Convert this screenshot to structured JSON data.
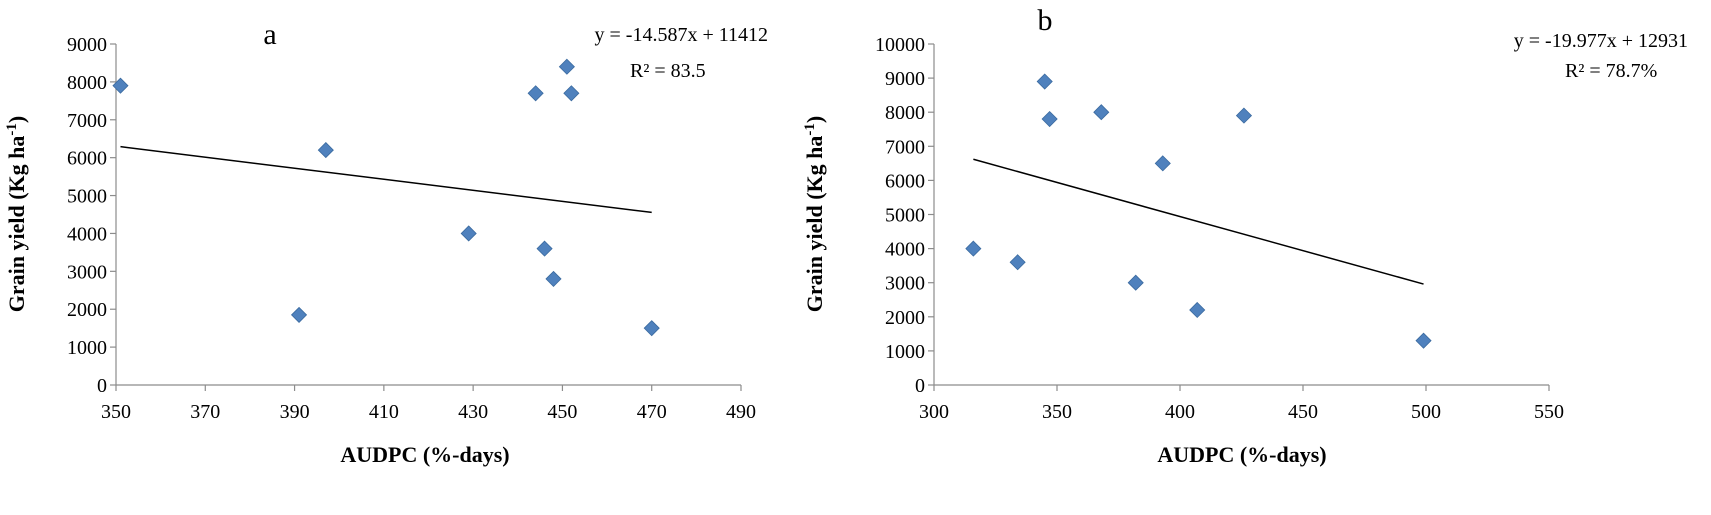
{
  "chart_data": [
    {
      "type": "scatter",
      "panel_label": "a",
      "xlabel": "AUDPC (%-days)",
      "ylabel": "Grain yield (Kg ha",
      "ylabel_sup": "-1",
      "ylabel_end": ")",
      "xlim": [
        350,
        490
      ],
      "ylim": [
        0,
        9000
      ],
      "xticks": [
        350,
        370,
        390,
        410,
        430,
        450,
        470,
        490
      ],
      "yticks": [
        0,
        1000,
        2000,
        3000,
        4000,
        5000,
        6000,
        7000,
        8000,
        9000
      ],
      "grid": false,
      "marker_color": "#4F81BD",
      "points": [
        {
          "x": 351,
          "y": 7900
        },
        {
          "x": 391,
          "y": 1850
        },
        {
          "x": 397,
          "y": 6200
        },
        {
          "x": 429,
          "y": 4000
        },
        {
          "x": 444,
          "y": 7700
        },
        {
          "x": 446,
          "y": 3600
        },
        {
          "x": 448,
          "y": 2800
        },
        {
          "x": 451,
          "y": 8400
        },
        {
          "x": 452,
          "y": 7700
        },
        {
          "x": 470,
          "y": 1500
        }
      ],
      "trendline": {
        "x": [
          351,
          470
        ],
        "y": [
          6290,
          4555
        ]
      },
      "equation": "y = -14.587x + 11412",
      "r2": "R² = 83.5"
    },
    {
      "type": "scatter",
      "panel_label": "b",
      "xlabel": "AUDPC (%-days)",
      "ylabel": "Grain yield (Kg ha",
      "ylabel_sup": "-1",
      "ylabel_end": ")",
      "xlim": [
        300,
        550
      ],
      "ylim": [
        0,
        10000
      ],
      "xticks": [
        300,
        350,
        400,
        450,
        500,
        550
      ],
      "yticks": [
        0,
        1000,
        2000,
        3000,
        4000,
        5000,
        6000,
        7000,
        8000,
        9000,
        10000
      ],
      "grid": false,
      "marker_color": "#4F81BD",
      "points": [
        {
          "x": 316,
          "y": 4000
        },
        {
          "x": 334,
          "y": 3600
        },
        {
          "x": 345,
          "y": 8900
        },
        {
          "x": 347,
          "y": 7800
        },
        {
          "x": 368,
          "y": 8000
        },
        {
          "x": 382,
          "y": 3000
        },
        {
          "x": 393,
          "y": 6500
        },
        {
          "x": 407,
          "y": 2200
        },
        {
          "x": 426,
          "y": 7900
        },
        {
          "x": 499,
          "y": 1300
        }
      ],
      "trendline": {
        "x": [
          316,
          499
        ],
        "y": [
          6620,
          2960
        ]
      },
      "equation": "y = -19.977x + 12931",
      "r2": "R² = 78.7%"
    }
  ]
}
